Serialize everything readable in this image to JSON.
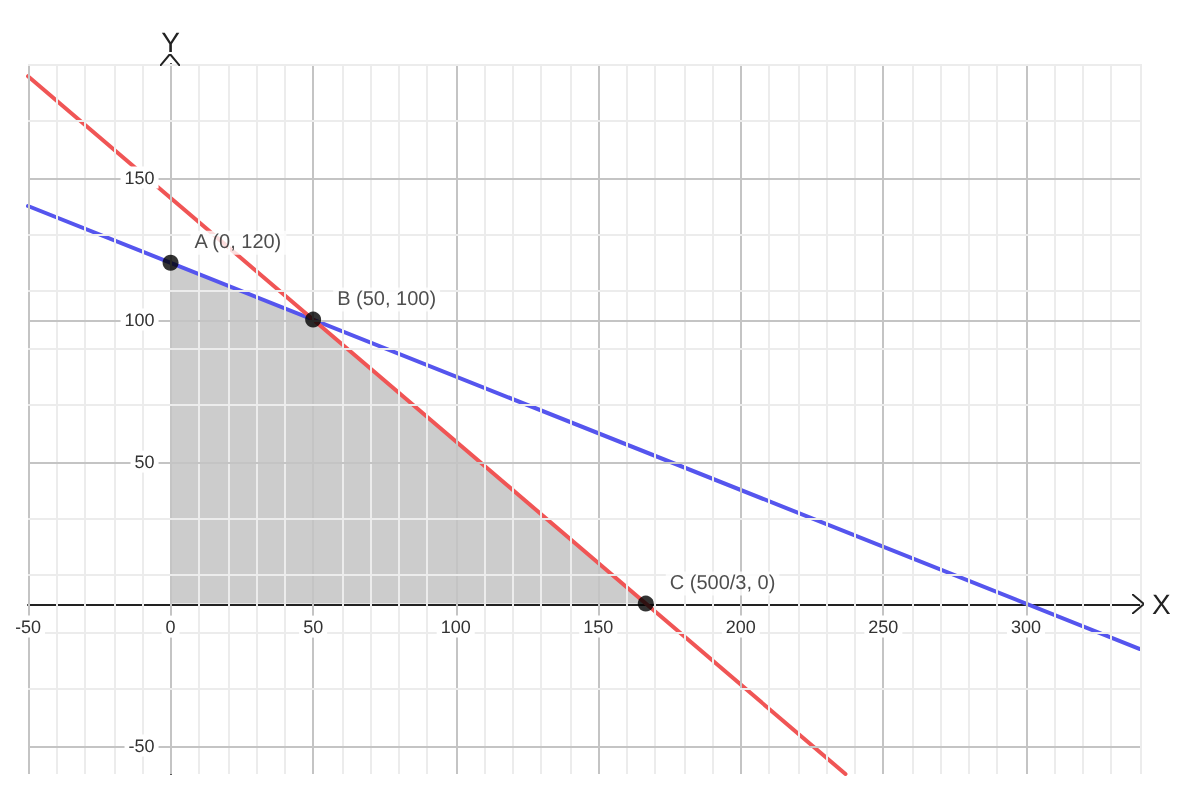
{
  "chart_data": {
    "type": "line",
    "xlabel": "X",
    "ylabel": "Y",
    "xlim": [
      -50,
      340
    ],
    "ylim": [
      -60,
      190
    ],
    "xticks": [
      -50,
      0,
      50,
      100,
      150,
      200,
      250,
      300
    ],
    "yticks": [
      -50,
      50,
      100,
      150
    ],
    "grid": true,
    "marker": "none",
    "series": [
      {
        "type": "area",
        "color": "#cccccc",
        "x": [
          0,
          0,
          50,
          166.67
        ],
        "values": [
          0,
          120,
          100,
          0
        ]
      },
      {
        "color": "#5555ee",
        "x": [
          -50,
          340
        ],
        "values": [
          140,
          -16
        ]
      },
      {
        "color": "#f05555",
        "x": [
          -50,
          236.7
        ],
        "values": [
          185.7,
          -60
        ]
      },
      {
        "type": "scatter",
        "color": "#000000",
        "marker": "circle",
        "x": [
          0,
          50,
          166.67
        ],
        "values": [
          120,
          100,
          0
        ],
        "value_labels": [
          "A (0, 120)",
          "B (50, 100)",
          "C (500/3, 0)"
        ]
      }
    ]
  }
}
